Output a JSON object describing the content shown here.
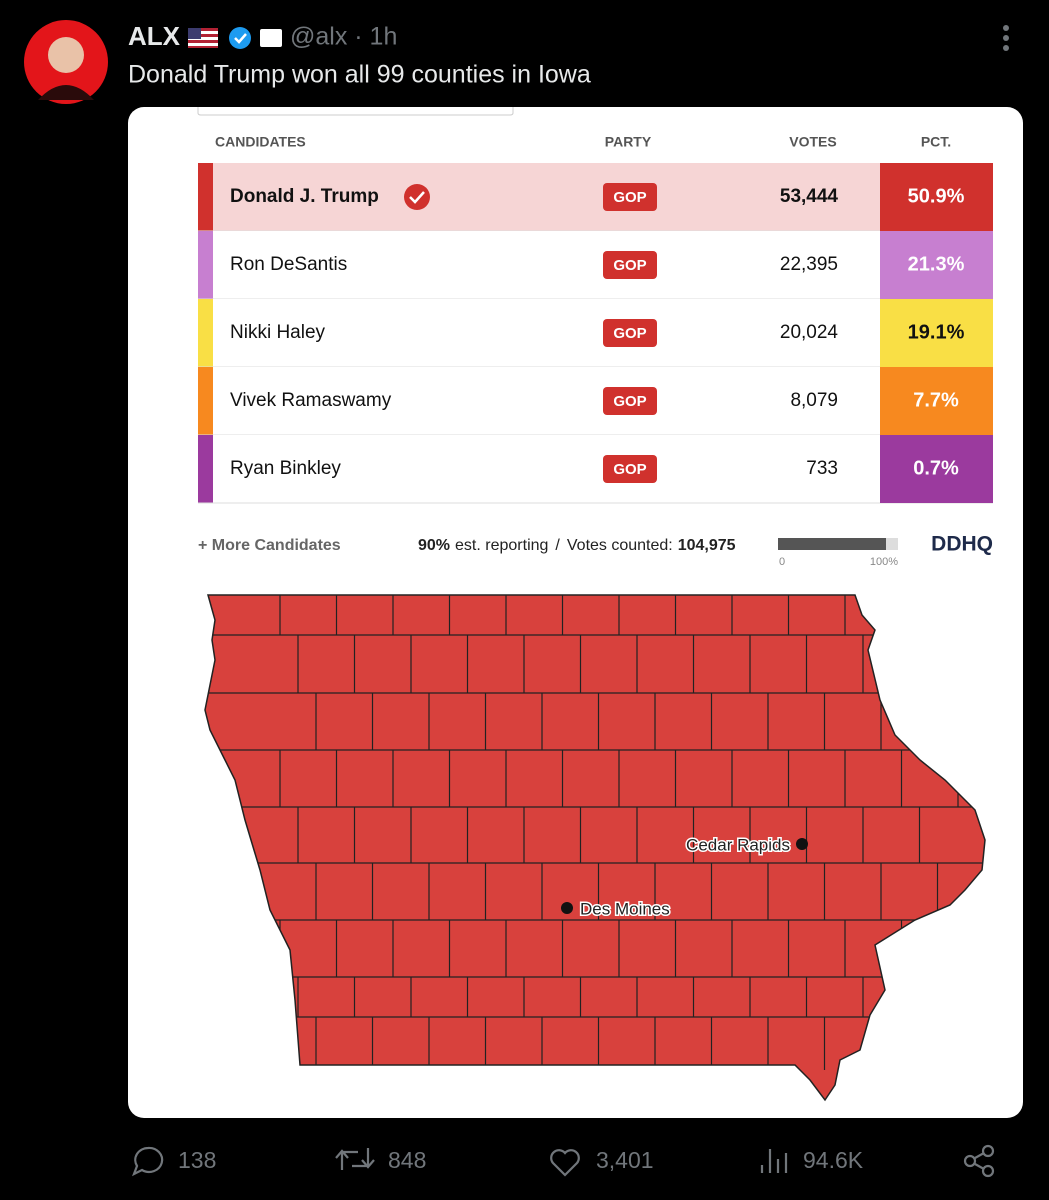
{
  "post": {
    "author": "ALX",
    "handle_time": "@alx · 1h",
    "text": "Donald Trump won all 99 counties in Iowa"
  },
  "table": {
    "headers": [
      "CANDIDATES",
      "PARTY",
      "VOTES",
      "PCT."
    ],
    "rows": [
      {
        "candidate": "Donald J. Trump",
        "party": "GOP",
        "votes": "53,444",
        "pct": "50.9%",
        "color": "#d0312d",
        "pct_text_color": "#ffffff",
        "winner": true
      },
      {
        "candidate": "Ron DeSantis",
        "party": "GOP",
        "votes": "22,395",
        "pct": "21.3%",
        "color": "#c77fd0",
        "pct_text_color": "#ffffff",
        "winner": false
      },
      {
        "candidate": "Nikki Haley",
        "party": "GOP",
        "votes": "20,024",
        "pct": "19.1%",
        "color": "#f9df45",
        "pct_text_color": "#111111",
        "winner": false
      },
      {
        "candidate": "Vivek Ramaswamy",
        "party": "GOP",
        "votes": "8,079",
        "pct": "7.7%",
        "color": "#f7891f",
        "pct_text_color": "#ffffff",
        "winner": false
      },
      {
        "candidate": "Ryan Binkley",
        "party": "GOP",
        "votes": "733",
        "pct": "0.7%",
        "color": "#9b3a9e",
        "pct_text_color": "#ffffff",
        "winner": false
      }
    ]
  },
  "footer": {
    "more": "+ More Candidates",
    "reporting": {
      "value": 90,
      "label": "90%"
    },
    "reporting_text": "est. reporting",
    "separator": "/",
    "votes_label": "Votes counted:",
    "votes_total": "104,975",
    "scale": [
      "0",
      "100%"
    ],
    "brand": "DDHQ"
  },
  "map": {
    "cities": [
      "Cedar Rapids",
      "Des Moines"
    ]
  },
  "actions": {
    "replies": "138",
    "reposts": "848",
    "likes": "3,401",
    "views": "94.6K"
  }
}
